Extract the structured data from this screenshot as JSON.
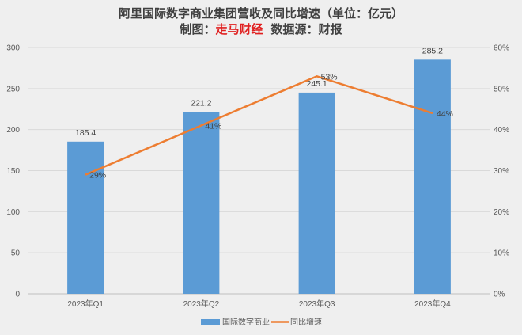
{
  "chart_data": {
    "type": "bar+line",
    "title": "阿里国际数字商业集团营收及同比增速（单位：亿元）",
    "subtitle_prefix": "制图：",
    "subtitle_brand": "走马财经",
    "subtitle_source": "数据源：财报",
    "categories": [
      "2023年Q1",
      "2023年Q2",
      "2023年Q3",
      "2023年Q4"
    ],
    "series": [
      {
        "name": "国际数字商业",
        "type": "bar",
        "axis": "left",
        "values": [
          185.4,
          221.2,
          245.1,
          285.2
        ],
        "labels": [
          "185.4",
          "221.2",
          "245.1",
          "285.2"
        ],
        "color": "#5b9bd5"
      },
      {
        "name": "同比增速",
        "type": "line",
        "axis": "right",
        "values": [
          29,
          41,
          53,
          44
        ],
        "labels": [
          "29%",
          "41%",
          "53%",
          "44%"
        ],
        "color": "#ed7d31"
      }
    ],
    "y_left": {
      "range": [
        0,
        300
      ],
      "ticks": [
        "0",
        "50",
        "100",
        "150",
        "200",
        "250",
        "300"
      ]
    },
    "y_right": {
      "range": [
        0,
        60
      ],
      "ticks": [
        "0%",
        "10%",
        "20%",
        "30%",
        "40%",
        "50%",
        "60%"
      ]
    },
    "grid": true,
    "legend": "bottom",
    "brand_color": "#e02020"
  }
}
